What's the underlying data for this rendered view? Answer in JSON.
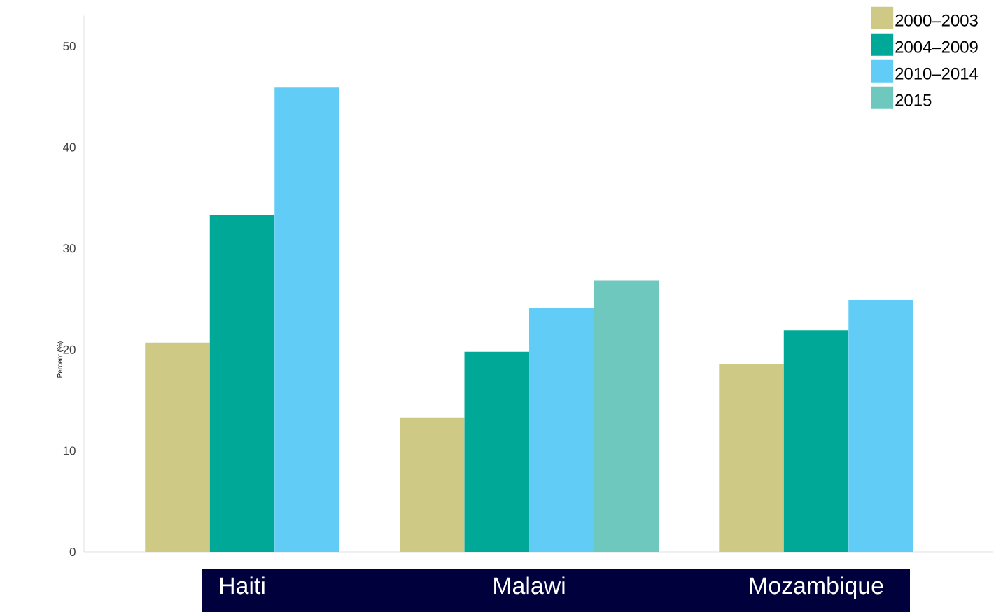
{
  "chart_data": {
    "type": "bar",
    "ylabel": "Percent (%)",
    "categories": [
      "Haiti",
      "Malawi",
      "Mozambique"
    ],
    "series": [
      {
        "name": "2000–2003",
        "color": "#cfc986",
        "values": [
          20.7,
          13.3,
          18.6
        ]
      },
      {
        "name": "2004–2009",
        "color": "#00a898",
        "values": [
          33.3,
          19.8,
          21.9
        ]
      },
      {
        "name": "2010–2014",
        "color": "#61cdf6",
        "values": [
          45.9,
          24.1,
          24.9
        ]
      },
      {
        "name": "2015",
        "color": "#6fc8be",
        "values": [
          null,
          26.8,
          null
        ]
      }
    ],
    "ylim": [
      0,
      53
    ],
    "yticks": [
      0,
      10,
      20,
      30,
      40,
      50
    ],
    "legend": "top right",
    "grid": false
  }
}
